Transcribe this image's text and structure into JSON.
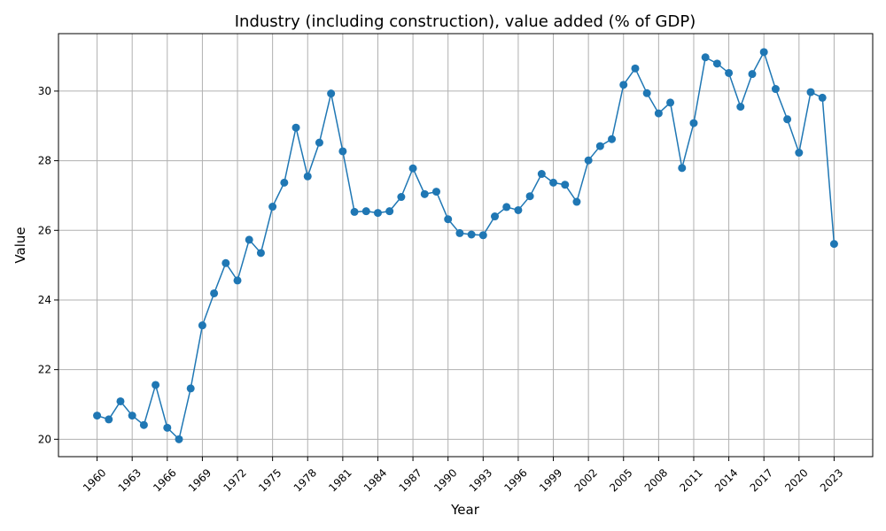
{
  "chart_data": {
    "type": "line",
    "title": "Industry (including construction), value added (% of GDP)",
    "xlabel": "Year",
    "ylabel": "Value",
    "xlim": [
      1956.7,
      2026.3
    ],
    "ylim": [
      19.5,
      31.65
    ],
    "grid": true,
    "legend": "none",
    "color": "#1f77b4",
    "xticks": [
      "1960",
      "1963",
      "1966",
      "1969",
      "1972",
      "1975",
      "1978",
      "1981",
      "1984",
      "1987",
      "1990",
      "1993",
      "1996",
      "1999",
      "2002",
      "2005",
      "2008",
      "2011",
      "2014",
      "2017",
      "2020",
      "2023"
    ],
    "yticks": [
      "20",
      "22",
      "24",
      "26",
      "28",
      "30"
    ],
    "x": [
      1960,
      1961,
      1962,
      1963,
      1964,
      1965,
      1966,
      1967,
      1968,
      1969,
      1970,
      1971,
      1972,
      1973,
      1974,
      1975,
      1976,
      1977,
      1978,
      1979,
      1980,
      1981,
      1982,
      1983,
      1984,
      1985,
      1986,
      1987,
      1988,
      1989,
      1990,
      1991,
      1992,
      1993,
      1994,
      1995,
      1996,
      1997,
      1998,
      1999,
      2000,
      2001,
      2002,
      2003,
      2004,
      2005,
      2006,
      2007,
      2008,
      2009,
      2010,
      2011,
      2012,
      2013,
      2014,
      2015,
      2016,
      2017,
      2018,
      2019,
      2020,
      2021,
      2022,
      2023
    ],
    "y": [
      20.68,
      20.57,
      21.09,
      20.68,
      20.41,
      21.56,
      20.33,
      20.0,
      21.46,
      23.27,
      24.19,
      25.06,
      24.56,
      25.73,
      25.35,
      26.68,
      27.37,
      28.95,
      27.55,
      28.52,
      29.93,
      28.27,
      26.53,
      26.55,
      26.5,
      26.55,
      26.96,
      27.78,
      27.04,
      27.11,
      26.32,
      25.92,
      25.88,
      25.86,
      26.4,
      26.67,
      26.58,
      26.98,
      27.62,
      27.37,
      27.31,
      26.82,
      28.01,
      28.42,
      28.62,
      30.18,
      30.65,
      29.94,
      29.36,
      29.67,
      27.79,
      29.08,
      30.97,
      30.79,
      30.52,
      29.55,
      30.49,
      31.12,
      30.06,
      29.19,
      28.23,
      29.97,
      29.81,
      25.61
    ]
  }
}
